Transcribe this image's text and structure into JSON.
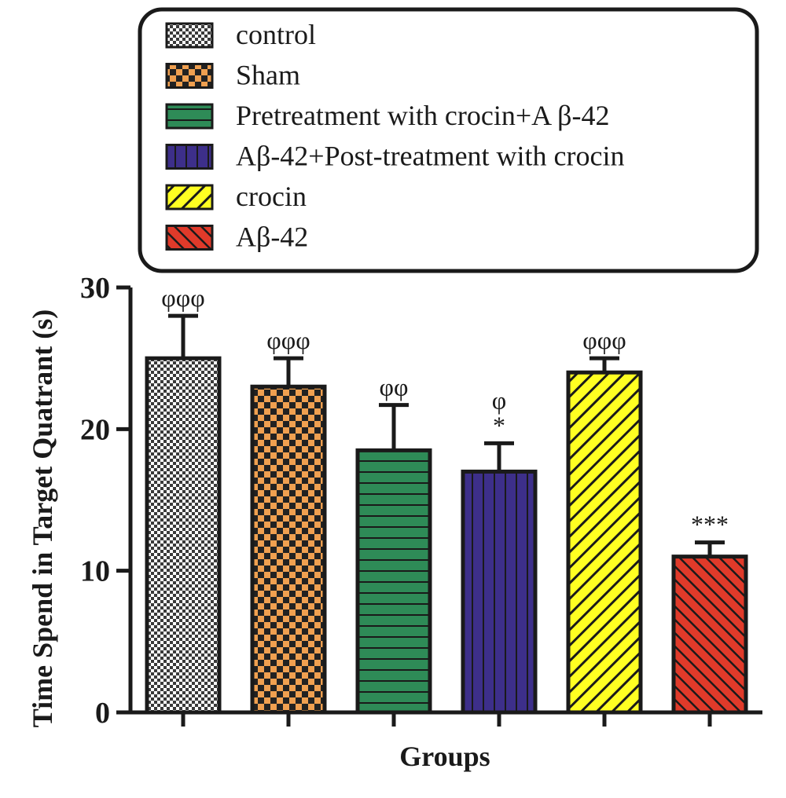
{
  "chart_data": {
    "type": "bar",
    "title": "",
    "xlabel": "Groups",
    "ylabel": "Time Spend in Target Quatrant (s)",
    "ylim": [
      0,
      30
    ],
    "yticks": [
      "0",
      "10",
      "20",
      "30"
    ],
    "grid": false,
    "legend_position": "top",
    "categories": [
      "control",
      "Sham",
      "Pretreatment with crocin+A β-42",
      "Aβ-42+Post-treatment with crocin",
      "crocin",
      "Aβ-42"
    ],
    "values": [
      25,
      23,
      18.5,
      17,
      24,
      11
    ],
    "error": [
      3,
      2,
      3.2,
      2,
      1,
      1
    ],
    "annotations": [
      "φφφ",
      "φφφ",
      "φφ",
      "φ\n*",
      "φφφ",
      "***"
    ],
    "colors": [
      "#d9d9d9",
      "#f0a050",
      "#2e8b57",
      "#3d2f8a",
      "#ffff22",
      "#e03a2a"
    ],
    "patterns": [
      "checker-fine",
      "checker",
      "horizontal",
      "vertical",
      "diagonal",
      "diagonal"
    ]
  }
}
